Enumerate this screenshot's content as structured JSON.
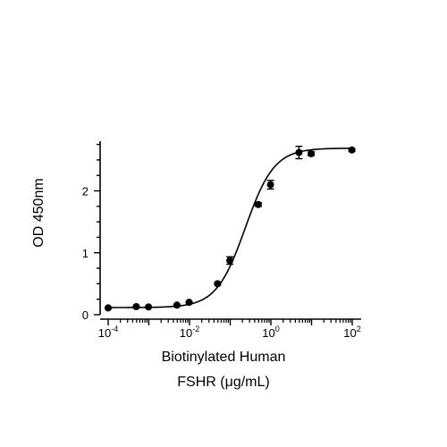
{
  "chart_data": {
    "type": "scatter",
    "xlabel_line1": "Biotinylated Human",
    "xlabel_line2": "FSHR (μg/mL)",
    "ylabel": "OD 450nm",
    "x_scale": "log10",
    "xlim": [
      0.0001,
      100
    ],
    "ylim": [
      0,
      2.8
    ],
    "x_ticks": [
      0.0001,
      0.01,
      1,
      100
    ],
    "x_tick_labels": [
      {
        "base": "10",
        "exp": "-4"
      },
      {
        "base": "10",
        "exp": "-2"
      },
      {
        "base": "10",
        "exp": "0"
      },
      {
        "base": "10",
        "exp": "2"
      }
    ],
    "y_ticks": [
      0,
      1,
      2
    ],
    "y_tick_labels": [
      "0",
      "1",
      "2"
    ],
    "grid": false,
    "legend": "none",
    "marker_color": "#000000",
    "points": [
      {
        "x": 0.0001,
        "y": 0.11,
        "err": 0.01
      },
      {
        "x": 0.00049,
        "y": 0.13,
        "err": 0.01
      },
      {
        "x": 0.00098,
        "y": 0.125,
        "err": 0.01
      },
      {
        "x": 0.0049,
        "y": 0.155,
        "err": 0.01
      },
      {
        "x": 0.0098,
        "y": 0.2,
        "err": 0.01
      },
      {
        "x": 0.049,
        "y": 0.5,
        "err": 0.02
      },
      {
        "x": 0.098,
        "y": 0.875,
        "err": 0.06
      },
      {
        "x": 0.49,
        "y": 1.78,
        "err": 0.03
      },
      {
        "x": 0.98,
        "y": 2.1,
        "err": 0.07
      },
      {
        "x": 4.9,
        "y": 2.62,
        "err": 0.1
      },
      {
        "x": 9.8,
        "y": 2.6,
        "err": 0.03
      },
      {
        "x": 98,
        "y": 2.66,
        "err": 0.02
      }
    ],
    "fit": {
      "model": "4PL",
      "bottom": 0.115,
      "top": 2.69,
      "ec50": 0.235,
      "hill": 1.22
    }
  }
}
